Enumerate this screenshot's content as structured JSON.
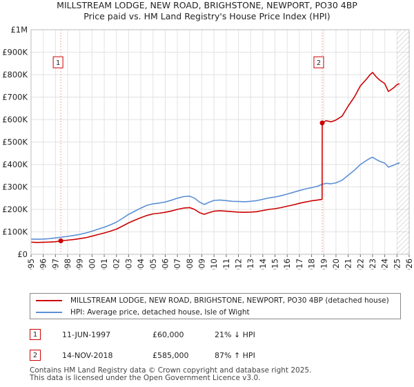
{
  "title_line1": "MILLSTREAM LODGE, NEW ROAD, BRIGHSTONE, NEWPORT, PO30 4BP",
  "title_line2": "Price paid vs. HM Land Registry's House Price Index (HPI)",
  "chart_data": {
    "type": "line",
    "xlim": [
      1995,
      2026
    ],
    "ylim": [
      0,
      1000000
    ],
    "x_ticks": [
      "1995",
      "1996",
      "1997",
      "1998",
      "1999",
      "2000",
      "2001",
      "2002",
      "2003",
      "2004",
      "2005",
      "2006",
      "2007",
      "2008",
      "2009",
      "2010",
      "2011",
      "2012",
      "2013",
      "2014",
      "2015",
      "2016",
      "2017",
      "2018",
      "2019",
      "2020",
      "2021",
      "2022",
      "2023",
      "2024",
      "2025",
      "2026"
    ],
    "y_ticks": [
      {
        "value": 0,
        "label": "£0"
      },
      {
        "value": 100000,
        "label": "£100K"
      },
      {
        "value": 200000,
        "label": "£200K"
      },
      {
        "value": 300000,
        "label": "£300K"
      },
      {
        "value": 400000,
        "label": "£400K"
      },
      {
        "value": 500000,
        "label": "£500K"
      },
      {
        "value": 600000,
        "label": "£600K"
      },
      {
        "value": 700000,
        "label": "£700K"
      },
      {
        "value": 800000,
        "label": "£800K"
      },
      {
        "value": 900000,
        "label": "£900K"
      },
      {
        "value": 1000000,
        "label": "£1M"
      }
    ],
    "forecast_start": 2025.0,
    "series": [
      {
        "name": "MILLSTREAM LODGE, NEW ROAD, BRIGHSTONE, NEWPORT, PO30 4BP (detached house)",
        "color": "#cc0000",
        "points": [
          [
            1995.0,
            54000
          ],
          [
            1995.5,
            53000
          ],
          [
            1996.0,
            53500
          ],
          [
            1996.5,
            54500
          ],
          [
            1997.0,
            56000
          ],
          [
            1997.44,
            60000
          ],
          [
            1998.0,
            63000
          ],
          [
            1998.5,
            66000
          ],
          [
            1999.0,
            70000
          ],
          [
            1999.5,
            74000
          ],
          [
            2000.0,
            81000
          ],
          [
            2000.5,
            88000
          ],
          [
            2001.0,
            95000
          ],
          [
            2001.5,
            103000
          ],
          [
            2002.0,
            112000
          ],
          [
            2002.5,
            126000
          ],
          [
            2003.0,
            140000
          ],
          [
            2003.5,
            152000
          ],
          [
            2004.0,
            163000
          ],
          [
            2004.5,
            173000
          ],
          [
            2005.0,
            180000
          ],
          [
            2005.5,
            183000
          ],
          [
            2006.0,
            187000
          ],
          [
            2006.5,
            193000
          ],
          [
            2007.0,
            200000
          ],
          [
            2007.5,
            206000
          ],
          [
            2008.0,
            208000
          ],
          [
            2008.4,
            200000
          ],
          [
            2008.8,
            186000
          ],
          [
            2009.2,
            178000
          ],
          [
            2009.6,
            186000
          ],
          [
            2010.0,
            192000
          ],
          [
            2010.5,
            194000
          ],
          [
            2011.0,
            192000
          ],
          [
            2011.5,
            190000
          ],
          [
            2012.0,
            188000
          ],
          [
            2012.5,
            187000
          ],
          [
            2013.0,
            188000
          ],
          [
            2013.5,
            190000
          ],
          [
            2014.0,
            195000
          ],
          [
            2014.5,
            200000
          ],
          [
            2015.0,
            203000
          ],
          [
            2015.5,
            208000
          ],
          [
            2016.0,
            214000
          ],
          [
            2016.5,
            220000
          ],
          [
            2017.0,
            227000
          ],
          [
            2017.5,
            233000
          ],
          [
            2018.0,
            238000
          ],
          [
            2018.5,
            242000
          ],
          [
            2018.86,
            245000
          ],
          [
            2018.87,
            585000
          ],
          [
            2019.2,
            595000
          ],
          [
            2019.6,
            590000
          ],
          [
            2020.0,
            598000
          ],
          [
            2020.5,
            615000
          ],
          [
            2021.0,
            660000
          ],
          [
            2021.5,
            700000
          ],
          [
            2022.0,
            750000
          ],
          [
            2022.5,
            780000
          ],
          [
            2022.8,
            800000
          ],
          [
            2023.0,
            810000
          ],
          [
            2023.3,
            790000
          ],
          [
            2023.6,
            775000
          ],
          [
            2024.0,
            760000
          ],
          [
            2024.3,
            725000
          ],
          [
            2024.7,
            740000
          ],
          [
            2025.0,
            755000
          ],
          [
            2025.2,
            760000
          ]
        ]
      },
      {
        "name": "HPI: Average price, detached house, Isle of Wight",
        "color": "#5b8fd6",
        "points": [
          [
            1995.0,
            68000
          ],
          [
            1995.5,
            67000
          ],
          [
            1996.0,
            68000
          ],
          [
            1996.5,
            70000
          ],
          [
            1997.0,
            73000
          ],
          [
            1997.44,
            76000
          ],
          [
            1998.0,
            80000
          ],
          [
            1998.5,
            84000
          ],
          [
            1999.0,
            89000
          ],
          [
            1999.5,
            95000
          ],
          [
            2000.0,
            103000
          ],
          [
            2000.5,
            112000
          ],
          [
            2001.0,
            121000
          ],
          [
            2001.5,
            131000
          ],
          [
            2002.0,
            143000
          ],
          [
            2002.5,
            160000
          ],
          [
            2003.0,
            178000
          ],
          [
            2003.5,
            192000
          ],
          [
            2004.0,
            206000
          ],
          [
            2004.5,
            218000
          ],
          [
            2005.0,
            225000
          ],
          [
            2005.5,
            228000
          ],
          [
            2006.0,
            233000
          ],
          [
            2006.5,
            241000
          ],
          [
            2007.0,
            250000
          ],
          [
            2007.5,
            257000
          ],
          [
            2008.0,
            259000
          ],
          [
            2008.4,
            250000
          ],
          [
            2008.8,
            233000
          ],
          [
            2009.2,
            222000
          ],
          [
            2009.6,
            232000
          ],
          [
            2010.0,
            240000
          ],
          [
            2010.5,
            242000
          ],
          [
            2011.0,
            239000
          ],
          [
            2011.5,
            236000
          ],
          [
            2012.0,
            235000
          ],
          [
            2012.5,
            234000
          ],
          [
            2013.0,
            236000
          ],
          [
            2013.5,
            239000
          ],
          [
            2014.0,
            245000
          ],
          [
            2014.5,
            251000
          ],
          [
            2015.0,
            255000
          ],
          [
            2015.5,
            261000
          ],
          [
            2016.0,
            268000
          ],
          [
            2016.5,
            276000
          ],
          [
            2017.0,
            284000
          ],
          [
            2017.5,
            291000
          ],
          [
            2018.0,
            297000
          ],
          [
            2018.5,
            303000
          ],
          [
            2018.87,
            312000
          ],
          [
            2019.2,
            316000
          ],
          [
            2019.6,
            314000
          ],
          [
            2020.0,
            318000
          ],
          [
            2020.5,
            330000
          ],
          [
            2021.0,
            352000
          ],
          [
            2021.5,
            374000
          ],
          [
            2022.0,
            400000
          ],
          [
            2022.5,
            418000
          ],
          [
            2022.8,
            428000
          ],
          [
            2023.0,
            432000
          ],
          [
            2023.3,
            422000
          ],
          [
            2023.6,
            414000
          ],
          [
            2024.0,
            406000
          ],
          [
            2024.3,
            388000
          ],
          [
            2024.7,
            396000
          ],
          [
            2025.0,
            404000
          ],
          [
            2025.2,
            407000
          ]
        ]
      }
    ],
    "annotations": [
      {
        "label": "1",
        "x": 1997.44,
        "y": 60000
      },
      {
        "label": "2",
        "x": 2018.87,
        "y": 585000
      }
    ]
  },
  "legend": [
    {
      "label": "MILLSTREAM LODGE, NEW ROAD, BRIGHSTONE, NEWPORT, PO30 4BP (detached house)",
      "color": "#cc0000"
    },
    {
      "label": "HPI: Average price, detached house, Isle of Wight",
      "color": "#5b8fd6"
    }
  ],
  "transactions": [
    {
      "num": "1",
      "date": "11-JUN-1997",
      "price": "£60,000",
      "hpi": "21% ↓ HPI"
    },
    {
      "num": "2",
      "date": "14-NOV-2018",
      "price": "£585,000",
      "hpi": "87% ↑ HPI"
    }
  ],
  "footer_line1": "Contains HM Land Registry data © Crown copyright and database right 2025.",
  "footer_line2": "This data is licensed under the Open Government Licence v3.0."
}
